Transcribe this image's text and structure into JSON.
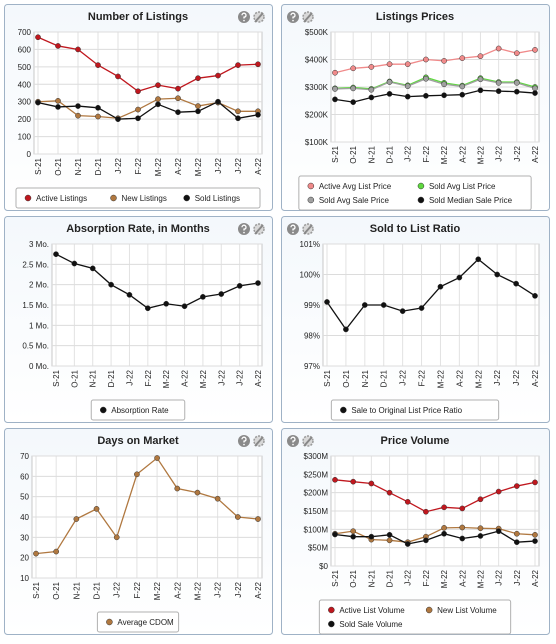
{
  "chart_data": [
    {
      "type": "line",
      "title": "Number of Listings",
      "categories": [
        "S-21",
        "O-21",
        "N-21",
        "D-21",
        "J-22",
        "F-22",
        "M-22",
        "A-22",
        "M-22",
        "J-22",
        "J-22",
        "A-22"
      ],
      "ylim": [
        0,
        700
      ],
      "yticks": [
        0,
        100,
        200,
        300,
        400,
        500,
        600,
        700
      ],
      "grid": true,
      "legend": "bottom",
      "series": [
        {
          "name": "Active Listings",
          "color": "#c0171e",
          "values": [
            670,
            620,
            600,
            510,
            445,
            360,
            395,
            375,
            435,
            450,
            510,
            515
          ]
        },
        {
          "name": "New Listings",
          "color": "#b07840",
          "values": [
            300,
            305,
            220,
            215,
            205,
            255,
            315,
            320,
            275,
            295,
            245,
            245
          ]
        },
        {
          "name": "Sold Listings",
          "color": "#111111",
          "values": [
            295,
            270,
            275,
            265,
            200,
            205,
            285,
            240,
            245,
            300,
            205,
            225
          ]
        }
      ]
    },
    {
      "type": "line",
      "title": "Listings Prices",
      "categories": [
        "S-21",
        "O-21",
        "N-21",
        "D-21",
        "J-22",
        "F-22",
        "M-22",
        "A-22",
        "M-22",
        "J-22",
        "J-22",
        "A-22"
      ],
      "ylim": [
        100000,
        500000
      ],
      "yticks": [
        {
          "value": 100000,
          "label": "$100K"
        },
        {
          "value": 200000,
          "label": "$200K"
        },
        {
          "value": 300000,
          "label": "$300K"
        },
        {
          "value": 400000,
          "label": "$400K"
        },
        {
          "value": 500000,
          "label": "$500K"
        }
      ],
      "grid": true,
      "legend": "bottom",
      "series": [
        {
          "name": "Active Avg List Price",
          "color": "#f08a8a",
          "values": [
            352000,
            368000,
            373000,
            383000,
            383000,
            400000,
            395000,
            405000,
            412000,
            440000,
            423000,
            435000
          ]
        },
        {
          "name": "Sold Avg List Price",
          "color": "#5fd93f",
          "values": [
            295000,
            298000,
            293000,
            320000,
            306000,
            335000,
            315000,
            305000,
            332000,
            318000,
            318000,
            300000
          ]
        },
        {
          "name": "Sold Avg Sale Price",
          "color": "#a0a0a0",
          "values": [
            293000,
            295000,
            290000,
            318000,
            303000,
            330000,
            310000,
            302000,
            328000,
            315000,
            315000,
            295000
          ]
        },
        {
          "name": "Sold Median Sale Price",
          "color": "#111111",
          "values": [
            255000,
            245000,
            262000,
            275000,
            265000,
            268000,
            270000,
            272000,
            288000,
            285000,
            283000,
            278000
          ]
        }
      ]
    },
    {
      "type": "line",
      "title": "Absorption Rate, in Months",
      "categories": [
        "S-21",
        "O-21",
        "N-21",
        "D-21",
        "J-22",
        "F-22",
        "M-22",
        "A-22",
        "M-22",
        "J-22",
        "J-22",
        "A-22"
      ],
      "ylim": [
        0,
        3
      ],
      "yticks": [
        {
          "value": 0,
          "label": "0 Mo."
        },
        {
          "value": 0.5,
          "label": "0.5 Mo."
        },
        {
          "value": 1,
          "label": "1 Mo."
        },
        {
          "value": 1.5,
          "label": "1.5 Mo."
        },
        {
          "value": 2,
          "label": "2 Mo."
        },
        {
          "value": 2.5,
          "label": "2.5 Mo."
        },
        {
          "value": 3,
          "label": "3 Mo."
        }
      ],
      "grid": true,
      "legend": "bottom",
      "series": [
        {
          "name": "Absorption Rate",
          "color": "#111111",
          "values": [
            2.75,
            2.52,
            2.4,
            2.0,
            1.75,
            1.42,
            1.53,
            1.47,
            1.7,
            1.77,
            1.97,
            2.04
          ]
        }
      ]
    },
    {
      "type": "line",
      "title": "Sold to List Ratio",
      "categories": [
        "S-21",
        "O-21",
        "N-21",
        "D-21",
        "J-22",
        "F-22",
        "M-22",
        "A-22",
        "M-22",
        "J-22",
        "J-22",
        "A-22"
      ],
      "ylim": [
        97,
        101
      ],
      "yticks": [
        {
          "value": 97,
          "label": "97%"
        },
        {
          "value": 98,
          "label": "98%"
        },
        {
          "value": 99,
          "label": "99%"
        },
        {
          "value": 100,
          "label": "100%"
        },
        {
          "value": 101,
          "label": "101%"
        }
      ],
      "grid": true,
      "legend": "bottom",
      "series": [
        {
          "name": "Sale to Original List Price Ratio",
          "color": "#111111",
          "values": [
            99.1,
            98.2,
            99.0,
            99.0,
            98.8,
            98.9,
            99.6,
            99.9,
            100.5,
            100.0,
            99.7,
            99.3
          ]
        }
      ]
    },
    {
      "type": "line",
      "title": "Days on Market",
      "categories": [
        "S-21",
        "O-21",
        "N-21",
        "D-21",
        "J-22",
        "F-22",
        "M-22",
        "A-22",
        "M-22",
        "J-22",
        "J-22",
        "A-22"
      ],
      "ylim": [
        10,
        70
      ],
      "yticks": [
        10,
        20,
        30,
        40,
        50,
        60,
        70
      ],
      "grid": true,
      "legend": "bottom",
      "series": [
        {
          "name": "Average CDOM",
          "color": "#b07840",
          "values": [
            22,
            23,
            39,
            44,
            30,
            61,
            69,
            54,
            52,
            49,
            40,
            39
          ]
        }
      ]
    },
    {
      "type": "line",
      "title": "Price Volume",
      "categories": [
        "S-21",
        "O-21",
        "N-21",
        "D-21",
        "J-22",
        "F-22",
        "M-22",
        "A-22",
        "M-22",
        "J-22",
        "J-22",
        "A-22"
      ],
      "ylim": [
        0,
        300000000
      ],
      "yticks": [
        {
          "value": 0,
          "label": "$0"
        },
        {
          "value": 50000000,
          "label": "$50M"
        },
        {
          "value": 100000000,
          "label": "$100M"
        },
        {
          "value": 150000000,
          "label": "$150M"
        },
        {
          "value": 200000000,
          "label": "$200M"
        },
        {
          "value": 250000000,
          "label": "$250M"
        },
        {
          "value": 300000000,
          "label": "$300M"
        }
      ],
      "grid": true,
      "legend": "bottom",
      "series": [
        {
          "name": "Active List Volume",
          "color": "#c0171e",
          "values": [
            235000000,
            230000000,
            225000000,
            200000000,
            175000000,
            148000000,
            160000000,
            157000000,
            182000000,
            203000000,
            218000000,
            228000000
          ]
        },
        {
          "name": "New List Volume",
          "color": "#b07840",
          "values": [
            88000000,
            95000000,
            72000000,
            70000000,
            65000000,
            80000000,
            104000000,
            105000000,
            103000000,
            102000000,
            88000000,
            85000000
          ]
        },
        {
          "name": "Sold Sale Volume",
          "color": "#111111",
          "values": [
            86000000,
            80000000,
            80000000,
            85000000,
            60000000,
            70000000,
            88000000,
            75000000,
            82000000,
            95000000,
            65000000,
            68000000
          ]
        }
      ]
    }
  ]
}
